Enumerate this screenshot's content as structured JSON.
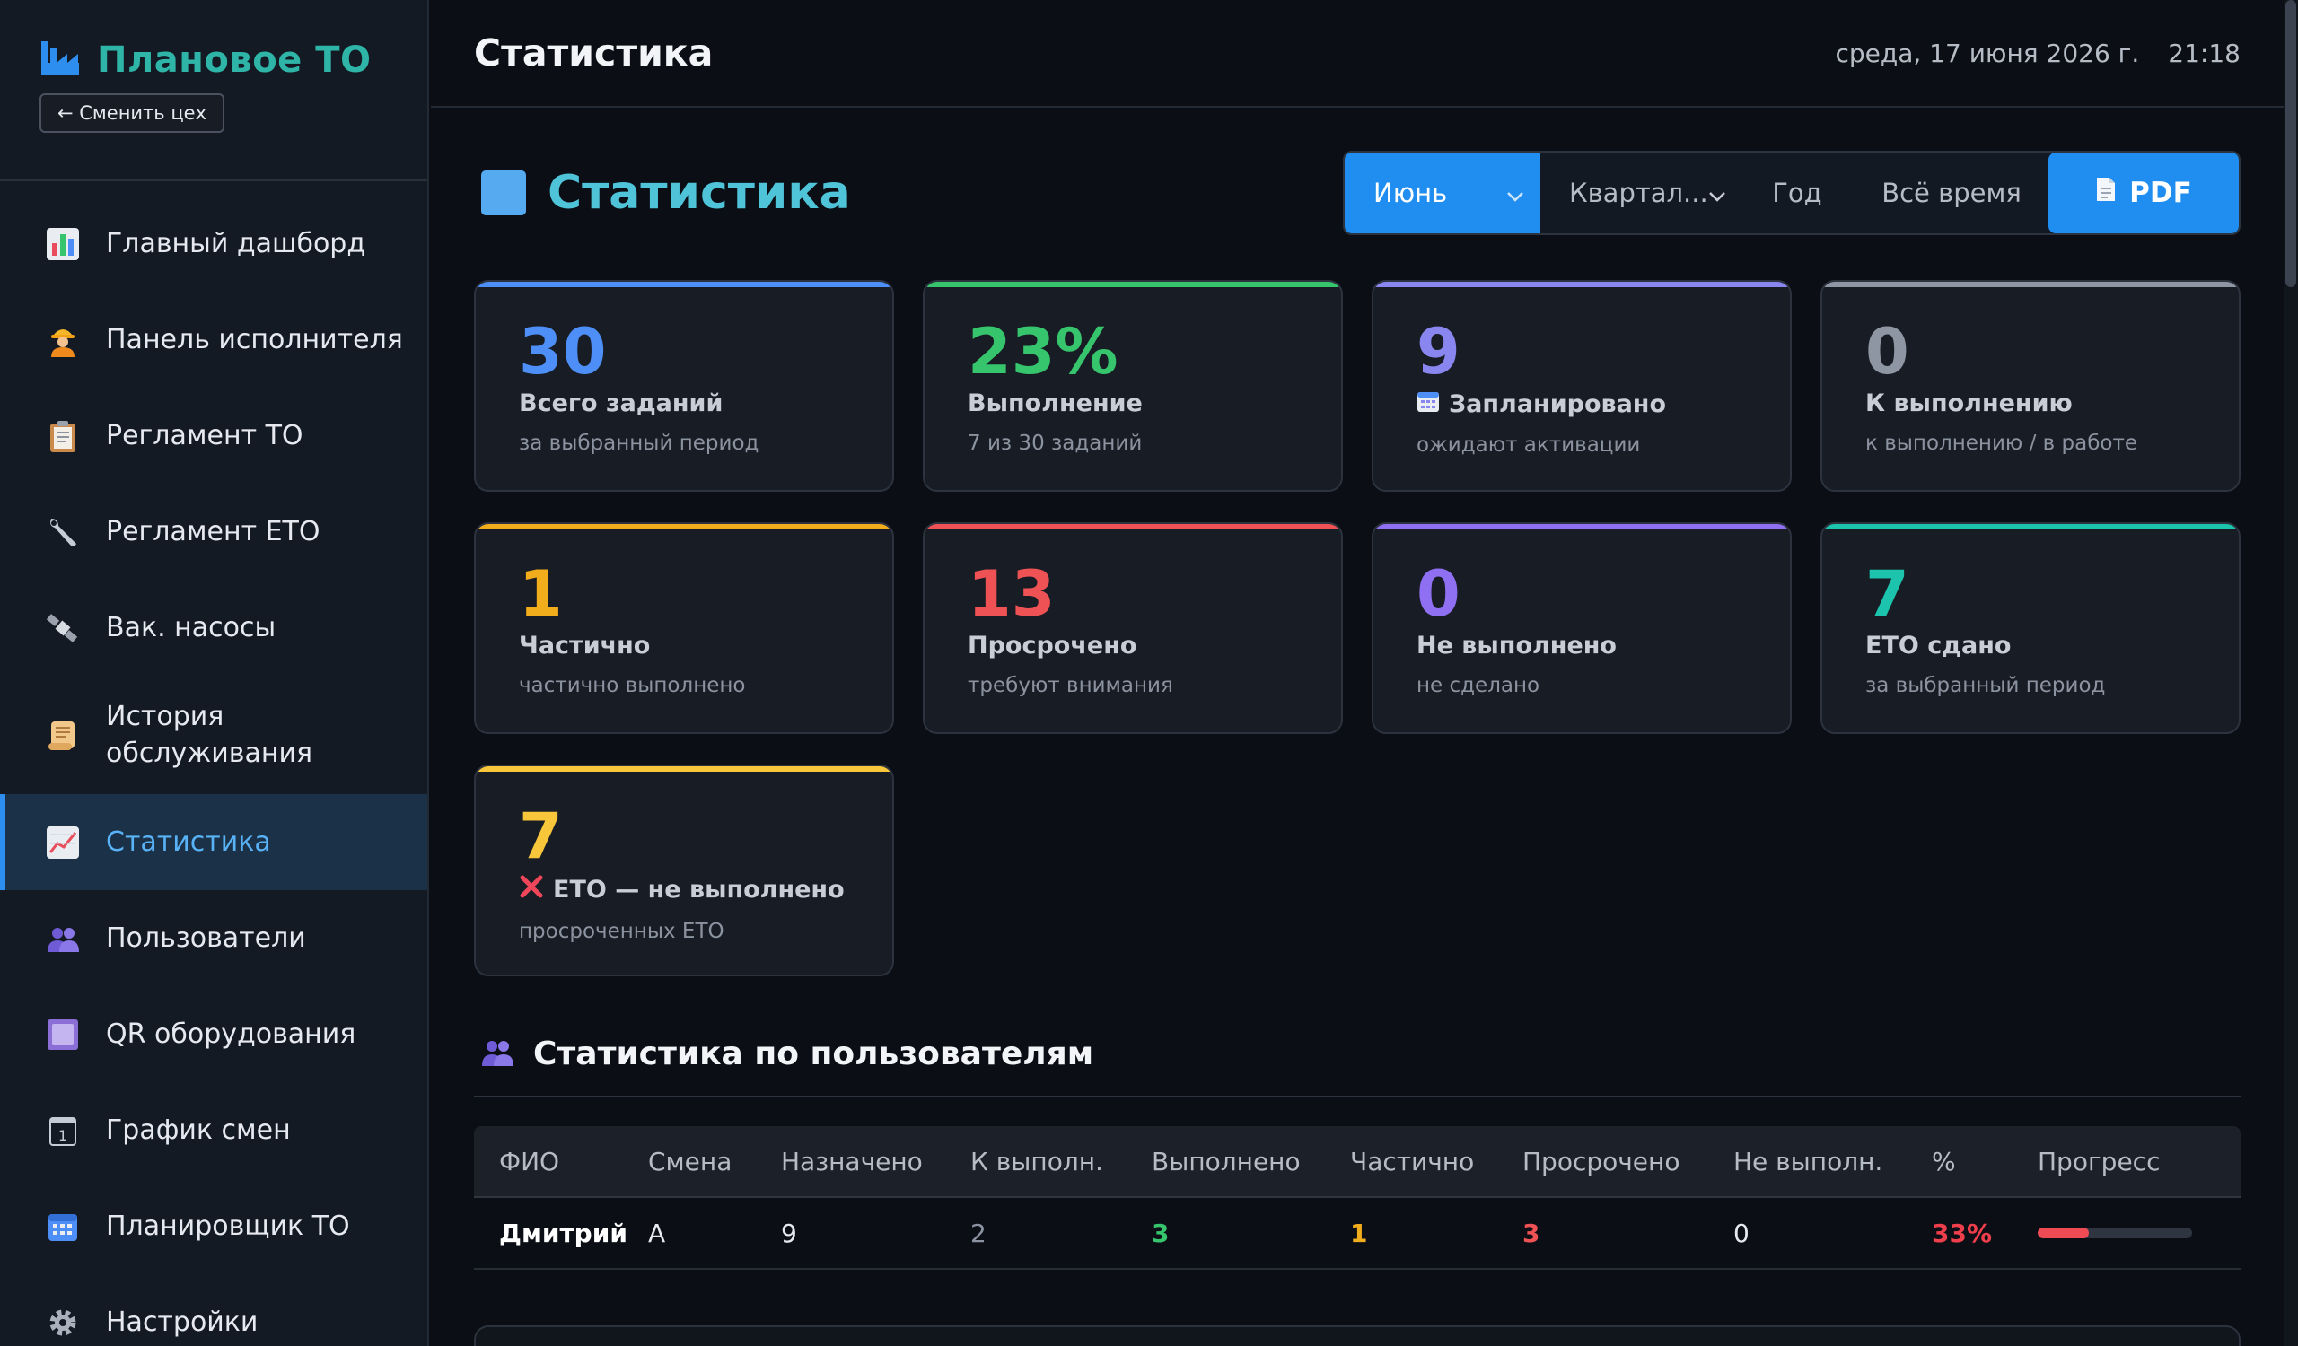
{
  "app": {
    "brand_title": "Плановое ТО",
    "switch_label": "← Сменить цех"
  },
  "nav": [
    {
      "label": "Главный дашборд",
      "icon": "bar-chart-icon"
    },
    {
      "label": "Панель исполнителя",
      "icon": "worker-icon"
    },
    {
      "label": "Регламент ТО",
      "icon": "clipboard-icon"
    },
    {
      "label": "Регламент ЕТО",
      "icon": "wrench-icon"
    },
    {
      "label": "Вак. насосы",
      "icon": "satellite-icon"
    },
    {
      "label": "История обслуживания",
      "icon": "scroll-icon"
    },
    {
      "label": "Статистика",
      "icon": "line-chart-icon",
      "active": true
    },
    {
      "label": "Пользователи",
      "icon": "users-icon"
    },
    {
      "label": "QR оборудования",
      "icon": "qr-icon"
    },
    {
      "label": "График смен",
      "icon": "calendar-1-icon"
    },
    {
      "label": "Планировщик ТО",
      "icon": "calendar-grid-icon"
    },
    {
      "label": "Настройки",
      "icon": "gear-icon"
    }
  ],
  "header": {
    "title": "Статистика",
    "date": "среда, 17 июня 2026 г.",
    "time": "21:18"
  },
  "section": {
    "title": "Статистика"
  },
  "filters": {
    "month_selected": "Июнь",
    "quarter_selected": "Квартал...",
    "year_label": "Год",
    "all_time_label": "Всё время",
    "pdf_label": "PDF"
  },
  "cards": [
    {
      "value": "30",
      "label": "Всего заданий",
      "sub": "за выбранный период",
      "color": "#4e8ef7"
    },
    {
      "value": "23%",
      "label": "Выполнение",
      "sub": "7 из 30 заданий",
      "color": "#36c46d"
    },
    {
      "value": "9",
      "label": "Запланировано",
      "sub": "ожидают активации",
      "color": "#8a86f0",
      "icon": "calendar-icon"
    },
    {
      "value": "0",
      "label": "К выполнению",
      "sub": "к выполнению / в работе",
      "color": "#8f96a3"
    },
    {
      "value": "1",
      "label": "Частично",
      "sub": "частично выполнено",
      "color": "#f2ad1c"
    },
    {
      "value": "13",
      "label": "Просрочено",
      "sub": "требуют внимания",
      "color": "#ef5254"
    },
    {
      "value": "0",
      "label": "Не выполнено",
      "sub": "не сделано",
      "color": "#8f6ff2"
    },
    {
      "value": "7",
      "label": "ЕТО сдано",
      "sub": "за выбранный период",
      "color": "#1cc4ad"
    },
    {
      "value": "7",
      "label": "ЕТО — не выполнено",
      "sub": "просроченных ЕТО",
      "color": "#f8c63b",
      "icon": "cross-icon"
    }
  ],
  "users_section": {
    "title": "Статистика по пользователям",
    "columns": [
      "ФИО",
      "Смена",
      "Назначено",
      "К выполн.",
      "Выполнено",
      "Частично",
      "Просрочено",
      "Не выполн.",
      "%",
      "Прогресс"
    ],
    "rows": [
      {
        "name": "Дмитрий",
        "shift": "А",
        "assigned": "9",
        "to_do": "2",
        "done": "3",
        "partial": "1",
        "overdue": "3",
        "not_done": "0",
        "percent": "33%",
        "progress": 0.33
      }
    ]
  },
  "colors": {
    "accent": "#1f8ef0",
    "brand": "#2fb5a8",
    "green": "#36c46d",
    "orange": "#f2ad1c",
    "red": "#ef5254"
  }
}
